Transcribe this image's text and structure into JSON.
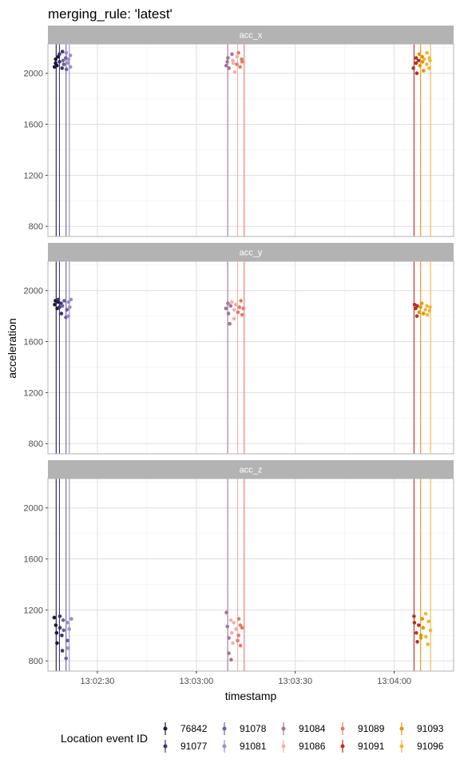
{
  "chart_data": {
    "type": "scatter",
    "title": "merging_rule: 'latest'",
    "xlabel": "timestamp",
    "ylabel": "acceleration",
    "x_domain": [
      "13:02:15",
      "13:04:18"
    ],
    "x_ticks": [
      "13:02:30",
      "13:03:00",
      "13:03:30",
      "13:04:00"
    ],
    "y_range": [
      720,
      2230
    ],
    "y_ticks": [
      800,
      1200,
      1600,
      2000
    ],
    "grid": true,
    "legend_position": "bottom",
    "legend_title": "Location event ID",
    "facets": [
      "acc_x",
      "acc_y",
      "acc_z"
    ],
    "groups": [
      {
        "id": "76842",
        "color": "#1c1a3a",
        "event_time": "13:02:17.5"
      },
      {
        "id": "91077",
        "color": "#3b3575",
        "event_time": "13:02:18.5"
      },
      {
        "id": "91078",
        "color": "#6f5fa0",
        "event_time": "13:02:20.5"
      },
      {
        "id": "91081",
        "color": "#9d8fc8",
        "event_time": "13:02:21.5"
      },
      {
        "id": "91084",
        "color": "#a37496",
        "event_time": "13:03:09.5"
      },
      {
        "id": "91086",
        "color": "#f2b1a8",
        "event_time": "13:03:12.5"
      },
      {
        "id": "91089",
        "color": "#e57b67",
        "event_time": "13:03:14.5"
      },
      {
        "id": "91091",
        "color": "#b83025",
        "event_time": "13:04:06"
      },
      {
        "id": "91093",
        "color": "#e39609",
        "event_time": "13:04:08"
      },
      {
        "id": "91096",
        "color": "#f1b53b",
        "event_time": "13:04:11"
      }
    ],
    "series": [
      {
        "facet": "acc_x",
        "cluster": 1,
        "x_range": [
          "13:02:17",
          "13:02:22"
        ],
        "y_values": [
          2050,
          2080,
          2110,
          2060,
          2130,
          2150,
          2090,
          2040,
          2170,
          2100,
          2070,
          2120,
          2030,
          2160,
          2080,
          2110,
          2050,
          2140
        ]
      },
      {
        "facet": "acc_x",
        "cluster": 2,
        "x_range": [
          "13:03:09",
          "13:03:14"
        ],
        "y_values": [
          2060,
          2090,
          2120,
          2040,
          2150,
          2080,
          2100,
          2010,
          2130,
          2070,
          2160,
          2050,
          2110,
          2090
        ]
      },
      {
        "facet": "acc_x",
        "cluster": 3,
        "x_range": [
          "13:04:06",
          "13:04:11"
        ],
        "y_values": [
          2040,
          2080,
          2120,
          2000,
          2100,
          2150,
          2060,
          2130,
          2090,
          2020,
          2110,
          2160,
          2070,
          2040,
          2120,
          2100
        ]
      },
      {
        "facet": "acc_y",
        "cluster": 1,
        "x_range": [
          "13:02:17",
          "13:02:22"
        ],
        "y_values": [
          1890,
          1920,
          1860,
          1910,
          1930,
          1870,
          1900,
          1820,
          1880,
          1920,
          1790,
          1850,
          1910,
          1800,
          1870,
          1930
        ]
      },
      {
        "facet": "acc_y",
        "cluster": 2,
        "x_range": [
          "13:03:09",
          "13:03:14"
        ],
        "y_values": [
          1860,
          1900,
          1820,
          1740,
          1880,
          1910,
          1780,
          1850,
          1890,
          1830,
          1870,
          1920,
          1810,
          1860
        ]
      },
      {
        "facet": "acc_y",
        "cluster": 3,
        "x_range": [
          "13:04:06",
          "13:04:11"
        ],
        "y_values": [
          1890,
          1860,
          1800,
          1880,
          1830,
          1870,
          1900,
          1820,
          1850,
          1880,
          1810,
          1870,
          1840
        ]
      },
      {
        "facet": "acc_z",
        "cluster": 1,
        "x_range": [
          "13:02:17",
          "13:02:22"
        ],
        "y_values": [
          1140,
          1080,
          1020,
          940,
          1150,
          1060,
          1000,
          880,
          1120,
          1040,
          820,
          960,
          1100,
          900,
          1050,
          1130
        ]
      },
      {
        "facet": "acc_z",
        "cluster": 2,
        "x_range": [
          "13:03:09",
          "13:03:14"
        ],
        "y_values": [
          1180,
          1070,
          980,
          860,
          810,
          1120,
          1020,
          940,
          1100,
          1050,
          960,
          1130,
          1000,
          1080,
          920,
          1060
        ]
      },
      {
        "facet": "acc_z",
        "cluster": 3,
        "x_range": [
          "13:04:06",
          "13:04:11"
        ],
        "y_values": [
          1150,
          1100,
          1020,
          950,
          1080,
          1000,
          980,
          1130,
          1060,
          1170,
          990,
          930,
          1110,
          1040
        ]
      }
    ]
  }
}
